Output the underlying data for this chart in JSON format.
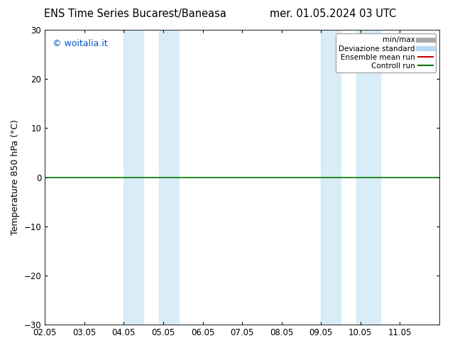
{
  "title_left": "ENS Time Series Bucarest/Baneasa",
  "title_right": "mer. 01.05.2024 03 UTC",
  "ylabel": "Temperature 850 hPa (°C)",
  "ylim": [
    -30,
    30
  ],
  "yticks": [
    -30,
    -20,
    -10,
    0,
    10,
    20,
    30
  ],
  "xlim": [
    0,
    10
  ],
  "xtick_labels": [
    "02.05",
    "03.05",
    "04.05",
    "05.05",
    "06.05",
    "07.05",
    "08.05",
    "09.05",
    "10.05",
    "11.05"
  ],
  "xtick_positions": [
    0,
    1,
    2,
    3,
    4,
    5,
    6,
    7,
    8,
    9
  ],
  "shaded_bands": [
    {
      "xmin": 2.0,
      "xmax": 2.5,
      "color": "#d8edf8"
    },
    {
      "xmin": 2.9,
      "xmax": 3.4,
      "color": "#d8edf8"
    },
    {
      "xmin": 7.0,
      "xmax": 7.5,
      "color": "#d8edf8"
    },
    {
      "xmin": 7.9,
      "xmax": 8.5,
      "color": "#d8edf8"
    }
  ],
  "hline_y": 0,
  "hline_color": "#007700",
  "hline_linewidth": 1.2,
  "copyright_text": "© woitalia.it",
  "copyright_color": "#0055cc",
  "legend_entries": [
    {
      "label": "min/max",
      "color": "#aaaaaa",
      "linewidth": 5
    },
    {
      "label": "Deviazione standard",
      "color": "#b8d8f0",
      "linewidth": 5
    },
    {
      "label": "Ensemble mean run",
      "color": "#cc0000",
      "linewidth": 1.5
    },
    {
      "label": "Controll run",
      "color": "#007700",
      "linewidth": 1.5
    }
  ],
  "background_color": "#ffffff",
  "title_fontsize": 10.5,
  "axis_fontsize": 9,
  "tick_fontsize": 8.5,
  "copyright_fontsize": 9,
  "legend_fontsize": 7.5
}
